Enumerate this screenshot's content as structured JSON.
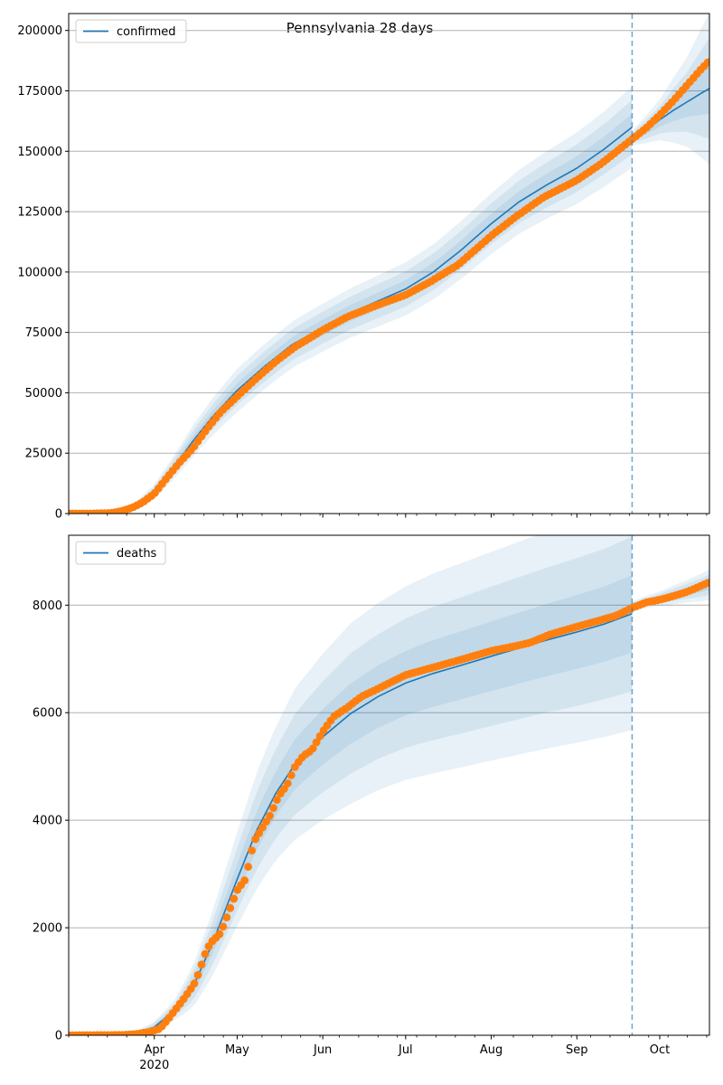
{
  "title": "Pennsylvania 28 days",
  "colors": {
    "model": "#1f77b4",
    "observed": "#ff7f0e",
    "band": "#1f77b4",
    "cutoff": "#1f77b4",
    "grid": "#b0b0b0"
  },
  "x_axis": {
    "start": "2020-03-01",
    "end": "2020-10-19",
    "month_ticks": [
      {
        "date": "2020-04-01",
        "label": "Apr"
      },
      {
        "date": "2020-05-01",
        "label": "May"
      },
      {
        "date": "2020-06-01",
        "label": "Jun"
      },
      {
        "date": "2020-07-01",
        "label": "Jul"
      },
      {
        "date": "2020-08-01",
        "label": "Aug"
      },
      {
        "date": "2020-09-01",
        "label": "Sep"
      },
      {
        "date": "2020-10-01",
        "label": "Oct"
      }
    ],
    "year_label": "2020",
    "cutoff_date": "2020-09-21"
  },
  "chart_data": [
    {
      "type": "line",
      "panel": "top",
      "legend": "confirmed",
      "legend_position": "top-left",
      "ylim": [
        0,
        207000
      ],
      "yticks": [
        0,
        25000,
        50000,
        75000,
        100000,
        125000,
        150000,
        175000,
        200000
      ],
      "grid": "y",
      "model": {
        "x": [
          "2020-03-01",
          "2020-03-16",
          "2020-03-22",
          "2020-03-26",
          "2020-04-01",
          "2020-04-08",
          "2020-04-15",
          "2020-04-22",
          "2020-05-01",
          "2020-05-11",
          "2020-05-21",
          "2020-06-01",
          "2020-06-11",
          "2020-06-21",
          "2020-07-01",
          "2020-07-11",
          "2020-07-21",
          "2020-08-01",
          "2020-08-11",
          "2020-08-21",
          "2020-09-01",
          "2020-09-11",
          "2020-09-21"
        ],
        "y": [
          0,
          300,
          1500,
          4000,
          9000,
          19000,
          30000,
          40000,
          51000,
          61000,
          70000,
          77000,
          83000,
          88000,
          93000,
          100000,
          109000,
          120000,
          129000,
          136000,
          143000,
          151000,
          160000
        ]
      },
      "forecast": {
        "x": [
          "2020-09-21",
          "2020-09-26",
          "2020-10-01",
          "2020-10-06",
          "2020-10-11",
          "2020-10-16",
          "2020-10-19"
        ],
        "y": [
          155500,
          159000,
          163000,
          167000,
          170500,
          174000,
          176000
        ]
      },
      "band_half_widths": {
        "x": [
          "2020-03-01",
          "2020-03-22",
          "2020-04-01",
          "2020-04-15",
          "2020-05-01",
          "2020-05-21",
          "2020-06-11",
          "2020-07-11",
          "2020-08-11",
          "2020-09-11",
          "2020-09-21"
        ],
        "sigma": [
          0,
          200,
          1000,
          2200,
          3000,
          3200,
          3400,
          3800,
          4400,
          5200,
          5600
        ]
      },
      "forecast_band": {
        "x": [
          "2020-09-21",
          "2020-10-01",
          "2020-10-11",
          "2020-10-19"
        ],
        "sigma": [
          1000,
          2800,
          6200,
          10500
        ]
      },
      "observed": {
        "x": [
          "2020-03-01",
          "2020-03-10",
          "2020-03-16",
          "2020-03-20",
          "2020-03-24",
          "2020-03-28",
          "2020-04-01",
          "2020-04-05",
          "2020-04-10",
          "2020-04-15",
          "2020-04-20",
          "2020-04-25",
          "2020-05-01",
          "2020-05-08",
          "2020-05-15",
          "2020-05-22",
          "2020-06-01",
          "2020-06-10",
          "2020-06-20",
          "2020-07-01",
          "2020-07-10",
          "2020-07-20",
          "2020-08-01",
          "2020-08-10",
          "2020-08-20",
          "2020-09-01",
          "2020-09-10",
          "2020-09-21",
          "2020-09-26",
          "2020-10-01",
          "2020-10-06",
          "2020-10-11",
          "2020-10-16",
          "2020-10-19"
        ],
        "y": [
          0,
          20,
          200,
          1000,
          2400,
          4800,
          8200,
          14000,
          21000,
          27000,
          35000,
          42000,
          48500,
          56000,
          63000,
          69000,
          76000,
          81500,
          86000,
          90500,
          96000,
          103000,
          115000,
          123000,
          131000,
          138000,
          145000,
          155000,
          159500,
          165000,
          171000,
          177500,
          184000,
          187500
        ]
      }
    },
    {
      "type": "line",
      "panel": "bottom",
      "legend": "deaths",
      "legend_position": "top-left",
      "ylim": [
        0,
        9300
      ],
      "yticks": [
        0,
        2000,
        4000,
        6000,
        8000
      ],
      "grid": "y",
      "model": {
        "x": [
          "2020-03-01",
          "2020-03-25",
          "2020-04-01",
          "2020-04-08",
          "2020-04-15",
          "2020-04-22",
          "2020-05-01",
          "2020-05-08",
          "2020-05-15",
          "2020-05-22",
          "2020-06-01",
          "2020-06-11",
          "2020-06-21",
          "2020-07-01",
          "2020-07-11",
          "2020-07-21",
          "2020-08-01",
          "2020-08-11",
          "2020-08-21",
          "2020-09-01",
          "2020-09-11",
          "2020-09-21"
        ],
        "y": [
          0,
          30,
          150,
          450,
          900,
          1700,
          2900,
          3800,
          4500,
          5050,
          5550,
          5980,
          6300,
          6550,
          6730,
          6880,
          7050,
          7200,
          7350,
          7500,
          7650,
          7840
        ]
      },
      "forecast": {
        "x": [
          "2020-09-21",
          "2020-09-26",
          "2020-10-01",
          "2020-10-06",
          "2020-10-11",
          "2020-10-16",
          "2020-10-19"
        ],
        "y": [
          7980,
          8060,
          8120,
          8190,
          8260,
          8330,
          8380
        ]
      },
      "band_half_widths": {
        "x": [
          "2020-03-01",
          "2020-03-25",
          "2020-04-08",
          "2020-04-22",
          "2020-05-08",
          "2020-05-22",
          "2020-06-11",
          "2020-07-11",
          "2020-08-11",
          "2020-09-11",
          "2020-09-21"
        ],
        "sigma": [
          0,
          10,
          60,
          200,
          360,
          470,
          560,
          620,
          660,
          700,
          720
        ]
      },
      "forecast_band": {
        "x": [
          "2020-09-21",
          "2020-10-01",
          "2020-10-11",
          "2020-10-19"
        ],
        "sigma": [
          30,
          45,
          70,
          95
        ]
      },
      "observed": {
        "x": [
          "2020-03-01",
          "2020-03-20",
          "2020-03-25",
          "2020-03-30",
          "2020-04-03",
          "2020-04-06",
          "2020-04-09",
          "2020-04-12",
          "2020-04-16",
          "2020-04-20",
          "2020-04-22",
          "2020-04-25",
          "2020-04-28",
          "2020-05-01",
          "2020-05-04",
          "2020-05-07",
          "2020-05-10",
          "2020-05-13",
          "2020-05-16",
          "2020-05-19",
          "2020-05-22",
          "2020-05-25",
          "2020-05-28",
          "2020-06-01",
          "2020-06-05",
          "2020-06-10",
          "2020-06-15",
          "2020-06-20",
          "2020-06-25",
          "2020-07-01",
          "2020-07-08",
          "2020-07-15",
          "2020-07-22",
          "2020-08-01",
          "2020-08-08",
          "2020-08-15",
          "2020-08-22",
          "2020-09-01",
          "2020-09-08",
          "2020-09-15",
          "2020-09-21",
          "2020-09-26",
          "2020-10-01",
          "2020-10-06",
          "2020-10-11",
          "2020-10-16",
          "2020-10-19"
        ],
        "y": [
          0,
          5,
          20,
          60,
          120,
          300,
          500,
          700,
          1000,
          1600,
          1750,
          1900,
          2300,
          2700,
          2900,
          3600,
          3850,
          4100,
          4450,
          4650,
          5000,
          5200,
          5300,
          5650,
          5930,
          6100,
          6300,
          6420,
          6550,
          6700,
          6800,
          6900,
          7000,
          7150,
          7220,
          7300,
          7450,
          7600,
          7700,
          7800,
          7950,
          8050,
          8100,
          8170,
          8250,
          8360,
          8430
        ]
      }
    }
  ]
}
